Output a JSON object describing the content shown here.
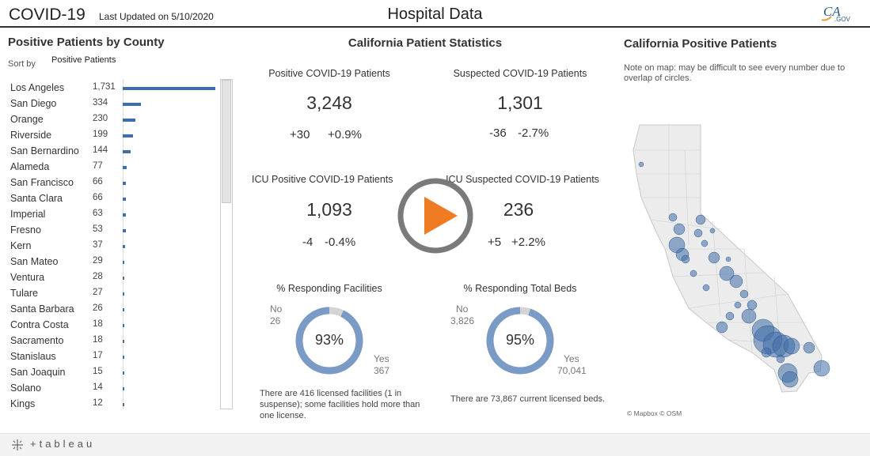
{
  "header": {
    "app_title": "COVID-19",
    "updated": "Last Updated on 5/10/2020",
    "page_title": "Hospital Data",
    "logo_text": "CA",
    "logo_sub": ".GOV"
  },
  "left_panel": {
    "title": "Positive Patients by County",
    "sort_label": "Sort by",
    "sort_value": "Positive Patients",
    "counties": [
      {
        "name": "Los Angeles",
        "value": "1,731",
        "num": 1731
      },
      {
        "name": "San Diego",
        "value": "334",
        "num": 334
      },
      {
        "name": "Orange",
        "value": "230",
        "num": 230
      },
      {
        "name": "Riverside",
        "value": "199",
        "num": 199
      },
      {
        "name": "San Bernardino",
        "value": "144",
        "num": 144
      },
      {
        "name": "Alameda",
        "value": "77",
        "num": 77
      },
      {
        "name": "San Francisco",
        "value": "66",
        "num": 66
      },
      {
        "name": "Santa Clara",
        "value": "66",
        "num": 66
      },
      {
        "name": "Imperial",
        "value": "63",
        "num": 63
      },
      {
        "name": "Fresno",
        "value": "53",
        "num": 53
      },
      {
        "name": "Kern",
        "value": "37",
        "num": 37
      },
      {
        "name": "San Mateo",
        "value": "29",
        "num": 29
      },
      {
        "name": "Ventura",
        "value": "28",
        "num": 28
      },
      {
        "name": "Tulare",
        "value": "27",
        "num": 27
      },
      {
        "name": "Santa Barbara",
        "value": "26",
        "num": 26
      },
      {
        "name": "Contra Costa",
        "value": "18",
        "num": 18
      },
      {
        "name": "Sacramento",
        "value": "18",
        "num": 18
      },
      {
        "name": "Stanislaus",
        "value": "17",
        "num": 17
      },
      {
        "name": "San Joaquin",
        "value": "15",
        "num": 15
      },
      {
        "name": "Solano",
        "value": "14",
        "num": 14
      },
      {
        "name": "Kings",
        "value": "12",
        "num": 12
      }
    ],
    "bar_color": "#3f6ea8"
  },
  "center_panel": {
    "title": "California Patient Statistics",
    "stats": {
      "positive": {
        "label": "Positive COVID-19 Patients",
        "value": "3,248",
        "delta": "+30",
        "pct": "+0.9%"
      },
      "suspected": {
        "label": "Suspected COVID-19 Patients",
        "value": "1,301",
        "delta": "-36",
        "pct": "-2.7%"
      },
      "icu_positive": {
        "label": "ICU Positive COVID-19 Patients",
        "value": "1,093",
        "delta": "-4",
        "pct": "-0.4%"
      },
      "icu_suspected": {
        "label": "ICU Suspected COVID-19 Patients",
        "value": "236",
        "delta": "+5",
        "pct": "+2.2%"
      }
    },
    "facilities": {
      "label": "% Responding Facilities",
      "percent": "93%",
      "fraction": 0.93,
      "no_label": "No",
      "no_value": "26",
      "yes_label": "Yes",
      "yes_value": "367",
      "note": "There are 416 licensed facilities (1 in suspense); some facilities hold more than one license."
    },
    "beds": {
      "label": "% Responding Total Beds",
      "percent": "95%",
      "fraction": 0.95,
      "no_label": "No",
      "no_value": "3,826",
      "yes_label": "Yes",
      "yes_value": "70,041",
      "note": "There are 73,867 current licensed beds."
    },
    "donut_color": "#7b9bc7",
    "donut_rest_color": "#d4d4d4"
  },
  "right_panel": {
    "title": "California Positive Patients",
    "note": "Note on map: may be difficult to see every number due to overlap of circles.",
    "credit": "© Mapbox © OSM"
  },
  "footer": {
    "brand": "+tableau"
  },
  "icons": {
    "play": "play-icon",
    "tableau": "tableau-logo-icon"
  }
}
